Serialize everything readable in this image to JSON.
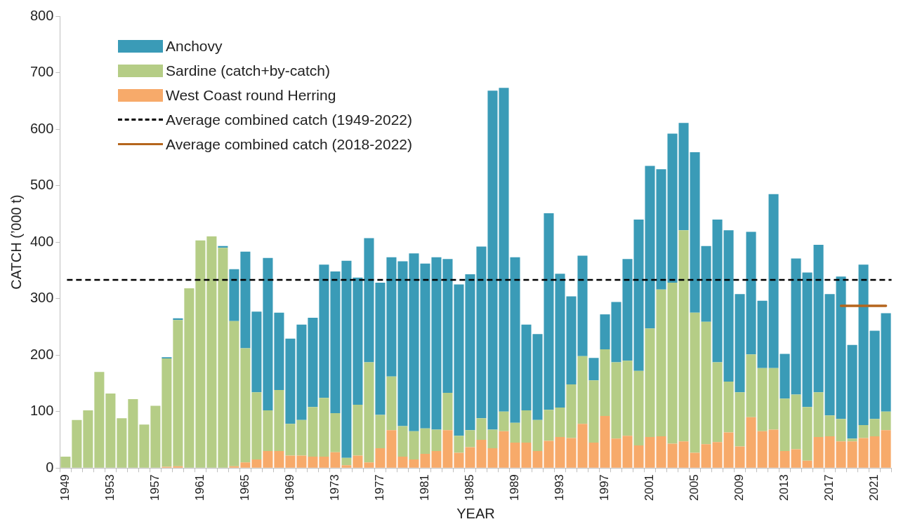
{
  "chart_data": {
    "type": "bar",
    "stacked": true,
    "xlabel": "YEAR",
    "ylabel": "CATCH (’000 t)",
    "categories": [
      "1949",
      null,
      null,
      null,
      "1953",
      null,
      null,
      null,
      "1957",
      null,
      null,
      null,
      "1961",
      null,
      null,
      null,
      "1965",
      null,
      null,
      null,
      "1969",
      null,
      null,
      null,
      "1973",
      null,
      null,
      null,
      "1977",
      null,
      null,
      null,
      "1981",
      null,
      null,
      null,
      "1985",
      null,
      null,
      null,
      "1989",
      null,
      null,
      null,
      "1993",
      null,
      null,
      null,
      "1997",
      null,
      null,
      null,
      "2001",
      null,
      null,
      null,
      "2005",
      null,
      null,
      null,
      "2009",
      null,
      null,
      null,
      "2013",
      null,
      null,
      null,
      "2017",
      null,
      null,
      null,
      "2021",
      null
    ],
    "series": [
      {
        "name": "West Coast round Herring",
        "color": "#f7aa6a",
        "values": [
          0,
          0,
          0,
          0,
          0,
          0,
          0,
          0,
          0,
          2,
          3,
          0,
          0,
          0,
          0,
          3,
          10,
          15,
          30,
          30,
          22,
          22,
          20,
          20,
          28,
          5,
          22,
          10,
          35,
          67,
          20,
          15,
          25,
          30,
          67,
          27,
          37,
          50,
          35,
          65,
          45,
          45,
          30,
          48,
          55,
          53,
          78,
          45,
          92,
          52,
          57,
          40,
          55,
          56,
          43,
          47,
          27,
          42,
          46,
          63,
          38,
          90,
          65,
          68,
          30,
          33,
          13,
          55,
          56,
          47,
          47,
          53,
          56,
          67
        ]
      },
      {
        "name": "Sardine (catch+by-catch)",
        "color": "#b5cd86",
        "values": [
          20,
          85,
          102,
          170,
          132,
          88,
          122,
          77,
          110,
          192,
          259,
          318,
          403,
          410,
          390,
          257,
          202,
          119,
          72,
          108,
          56,
          63,
          88,
          104,
          69,
          13,
          90,
          177,
          59,
          95,
          54,
          50,
          45,
          38,
          66,
          30,
          30,
          38,
          33,
          35,
          35,
          57,
          55,
          55,
          52,
          95,
          120,
          110,
          118,
          135,
          133,
          132,
          192,
          260,
          285,
          374,
          248,
          217,
          141,
          90,
          96,
          111,
          112,
          109,
          93,
          97,
          95,
          79,
          37,
          40,
          5,
          23,
          31,
          33
        ]
      },
      {
        "name": "Anchovy",
        "color": "#3a9bb7",
        "values": [
          0,
          0,
          0,
          0,
          0,
          0,
          0,
          0,
          0,
          2,
          3,
          0,
          0,
          0,
          3,
          92,
          171,
          143,
          270,
          137,
          151,
          169,
          158,
          236,
          251,
          349,
          225,
          220,
          234,
          211,
          292,
          315,
          292,
          305,
          237,
          268,
          276,
          304,
          600,
          573,
          293,
          152,
          152,
          348,
          237,
          156,
          178,
          40,
          62,
          107,
          180,
          268,
          288,
          213,
          264,
          190,
          284,
          134,
          253,
          268,
          174,
          217,
          119,
          308,
          79,
          241,
          238,
          261,
          215,
          252,
          166,
          284,
          156,
          174
        ]
      },
      {
        "type": "line",
        "name": "Average combined catch (2018-2022)",
        "color": "#b5651d",
        "values": [
          null,
          null,
          null,
          null,
          null,
          null,
          null,
          null,
          null,
          null,
          null,
          null,
          null,
          null,
          null,
          null,
          null,
          null,
          null,
          null,
          null,
          null,
          null,
          null,
          null,
          null,
          null,
          null,
          null,
          null,
          null,
          null,
          null,
          null,
          null,
          null,
          null,
          null,
          null,
          null,
          null,
          null,
          null,
          null,
          null,
          null,
          null,
          null,
          null,
          null,
          null,
          null,
          null,
          null,
          null,
          null,
          null,
          null,
          null,
          null,
          null,
          null,
          null,
          null,
          null,
          null,
          null,
          null,
          null,
          287,
          287,
          287,
          287,
          287
        ]
      }
    ],
    "ref_lines": [
      {
        "axis": "y",
        "value": 333,
        "label": "Average combined catch (1949-2022)",
        "color": "#000000",
        "line_style": "dashed"
      }
    ],
    "ylim": [
      0,
      800
    ],
    "yticks": [
      0,
      100,
      200,
      300,
      400,
      500,
      600,
      700,
      800
    ],
    "grid": false,
    "legend": "top left",
    "tick_labels": "xy"
  }
}
